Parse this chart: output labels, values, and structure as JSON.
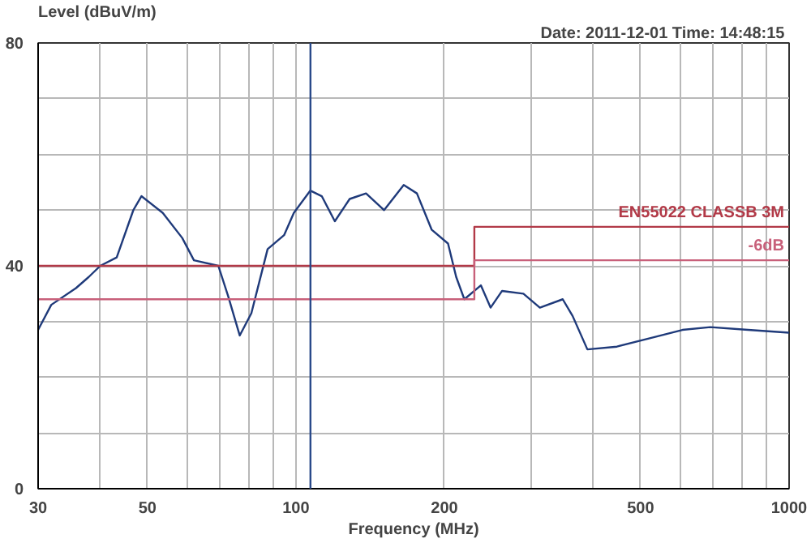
{
  "chart_data": {
    "type": "line",
    "ylabel": "Level (dBuV/m)",
    "xlabel": "Frequency (MHz)",
    "annotations": [
      "Date: 2011-12-01  Time: 14:48:15"
    ],
    "log": "x",
    "grid": true,
    "xlim": [
      30,
      1000
    ],
    "ylim": [
      0,
      80
    ],
    "xticks": [
      30,
      {
        "value": 40,
        "label": null
      },
      50,
      {
        "value": 60,
        "label": null
      },
      {
        "value": 70,
        "label": null
      },
      {
        "value": 80,
        "label": null
      },
      {
        "value": 90,
        "label": null
      },
      100,
      200,
      {
        "value": 300,
        "label": null
      },
      {
        "value": 400,
        "label": null
      },
      500,
      {
        "value": 600,
        "label": null
      },
      {
        "value": 700,
        "label": null
      },
      {
        "value": 800,
        "label": null
      },
      {
        "value": 900,
        "label": null
      },
      1000
    ],
    "yticks": [
      0,
      {
        "value": 10,
        "label": null
      },
      {
        "value": 20,
        "label": null
      },
      {
        "value": 30,
        "label": null
      },
      40,
      {
        "value": 50,
        "label": null
      },
      {
        "value": 60,
        "label": null
      },
      {
        "value": 70,
        "label": null
      },
      80
    ],
    "ref_lines": [
      {
        "axis": "x",
        "value": 107,
        "color": "#2a4a8a"
      }
    ],
    "series": [
      {
        "color": "#1f3a7a",
        "x": [
          30,
          31.9,
          35.8,
          38,
          40.1,
          43.3,
          46.8,
          48.6,
          53.7,
          58.8,
          62.1,
          69.6,
          72.9,
          76.9,
          81.2,
          87.6,
          94.6,
          99,
          106.9,
          112.8,
          119.9,
          128.5,
          138.7,
          150.9,
          165.4,
          175.9,
          188.4,
          203.4,
          211.3,
          219.5,
          237.1,
          248.1,
          261.8,
          289.2,
          312.3,
          347.5,
          363.9,
          389.9,
          447.6,
          521.7,
          607.7,
          692.2,
          825.4,
          1000
        ],
        "values": [
          28.5,
          33,
          36,
          38,
          40,
          41.5,
          50,
          52.5,
          49.5,
          45,
          41,
          40,
          34.5,
          27.5,
          31.5,
          43,
          45.5,
          49.5,
          53.5,
          52.5,
          48,
          52,
          53,
          50,
          54.5,
          53,
          46.5,
          44,
          38,
          34,
          36.5,
          32.5,
          35.5,
          35,
          32.5,
          34,
          31,
          25,
          25.5,
          27,
          28.5,
          29,
          28.5,
          28
        ]
      },
      {
        "name": "EN55022 CLASSB 3M",
        "color": "#b23a48",
        "x": [
          30,
          230,
          230,
          1000
        ],
        "values": [
          40,
          40,
          47,
          47
        ]
      },
      {
        "name": "-6dB",
        "color": "#c8607a",
        "x": [
          30,
          230,
          230,
          1000
        ],
        "values": [
          34,
          34,
          41,
          41
        ]
      }
    ]
  }
}
